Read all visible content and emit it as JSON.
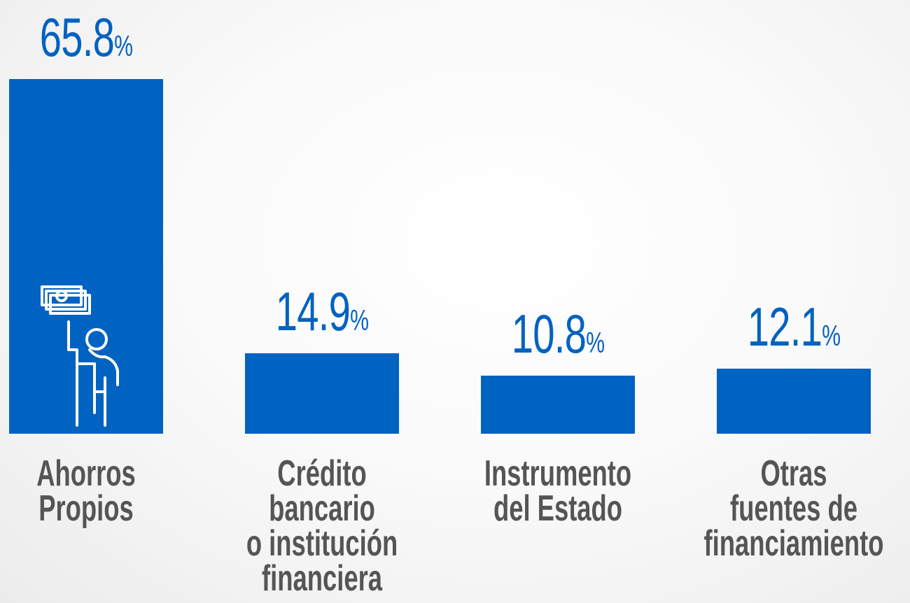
{
  "chart_data": {
    "type": "bar",
    "categories": [
      "Ahorros\nPropios",
      "Crédito\nbancario\no institución\nfinanciera",
      "Instrumento\ndel Estado",
      "Otras\nfuentes de\nfinanciamiento"
    ],
    "values": [
      65.8,
      14.9,
      10.8,
      12.1
    ],
    "value_labels": [
      "65.8%",
      "14.9%",
      "10.8%",
      "12.1%"
    ],
    "color": "#0062c1"
  }
}
